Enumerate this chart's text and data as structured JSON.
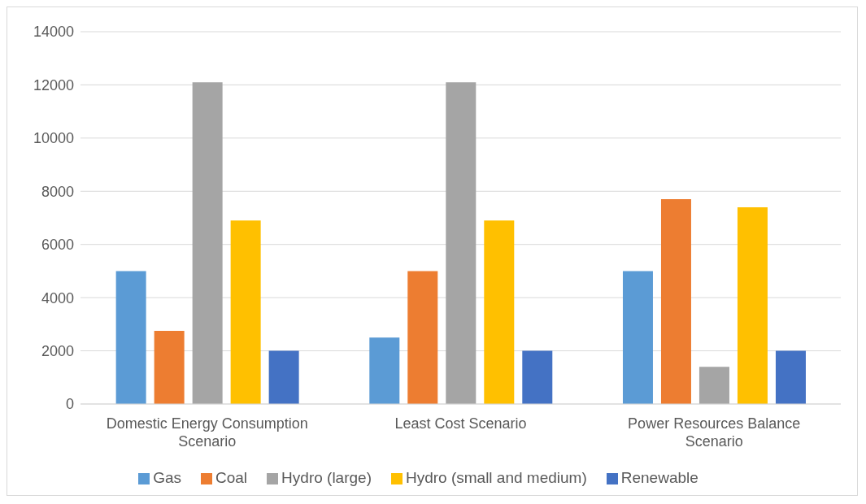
{
  "chart_data": {
    "type": "bar",
    "categories": [
      "Domestic Energy Consumption Scenario",
      "Least Cost Scenario",
      "Power Resources Balance Scenario"
    ],
    "series": [
      {
        "name": "Gas",
        "color": "#5b9bd5",
        "values": [
          5000,
          2500,
          5000
        ]
      },
      {
        "name": "Coal",
        "color": "#ed7d31",
        "values": [
          2750,
          5000,
          7700
        ]
      },
      {
        "name": "Hydro (large)",
        "color": "#a5a5a5",
        "values": [
          12100,
          12100,
          1400
        ]
      },
      {
        "name": "Hydro (small and medium)",
        "color": "#ffc000",
        "values": [
          6900,
          6900,
          7400
        ]
      },
      {
        "name": "Renewable",
        "color": "#4472c4",
        "values": [
          2000,
          2000,
          2000
        ]
      }
    ],
    "ylim": [
      0,
      14000
    ],
    "yticks": [
      0,
      2000,
      4000,
      6000,
      8000,
      10000,
      12000,
      14000
    ],
    "grid": "y",
    "legend": "bottom"
  }
}
